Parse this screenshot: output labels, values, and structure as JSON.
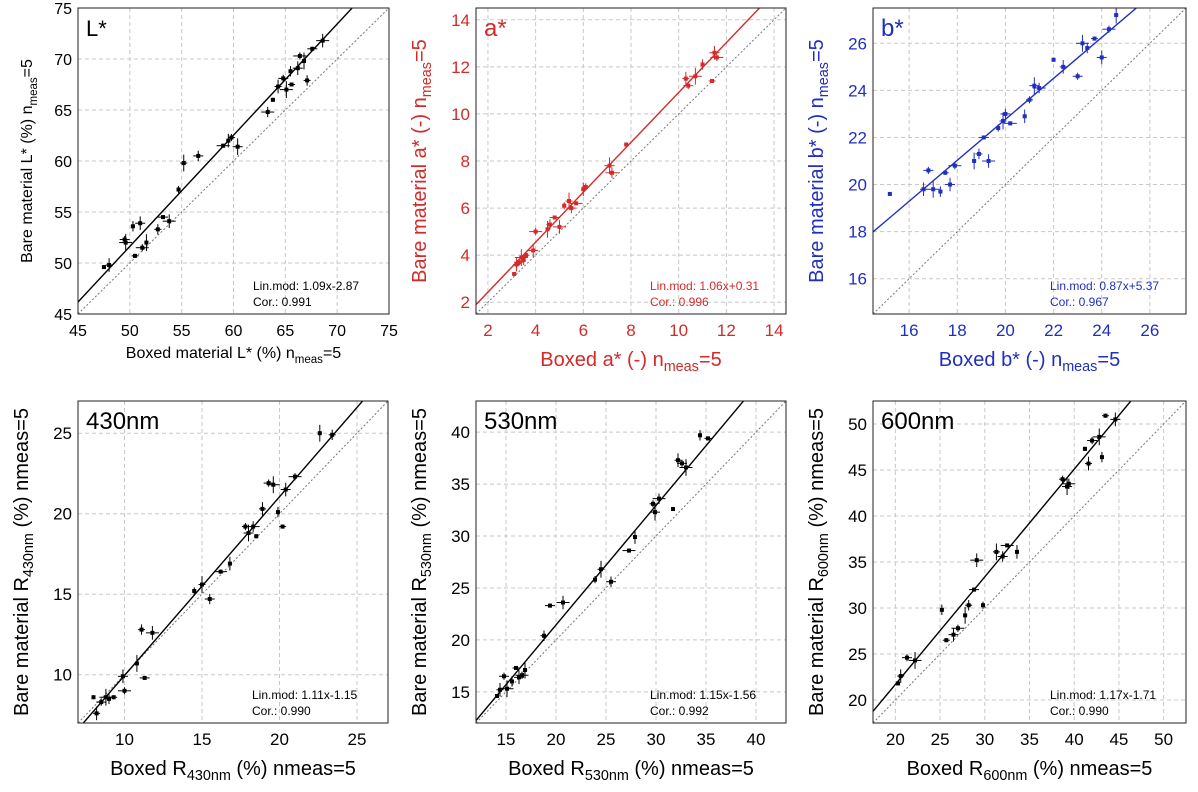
{
  "chart_data": [
    {
      "type": "scatter",
      "panel_label": "L*",
      "xlabel": "Boxed material L* (%) n",
      "xlabel_sub": "meas",
      "xlabel_tail": "=5",
      "ylabel": "Bare material L* (%) n",
      "ylabel_sub": "meas",
      "ylabel_tail": "=5",
      "xlim": [
        45,
        75
      ],
      "ylim": [
        45,
        75
      ],
      "xticks": [
        45,
        50,
        55,
        60,
        65,
        70,
        75
      ],
      "yticks": [
        45,
        50,
        55,
        60,
        65,
        70,
        75
      ],
      "color": "#000000",
      "fit": {
        "slope": 1.09,
        "intercept": -2.87
      },
      "annotation_lines": [
        "Lin.mod: 1.09x-2.87",
        "Cor.: 0.991"
      ],
      "points": [
        {
          "x": 47.5,
          "y": 49.6
        },
        {
          "x": 48.0,
          "y": 49.8
        },
        {
          "x": 49.5,
          "y": 52.3
        },
        {
          "x": 49.6,
          "y": 52.0
        },
        {
          "x": 50.3,
          "y": 53.6
        },
        {
          "x": 50.5,
          "y": 50.7
        },
        {
          "x": 51.0,
          "y": 53.9
        },
        {
          "x": 51.2,
          "y": 51.5
        },
        {
          "x": 51.6,
          "y": 52.0
        },
        {
          "x": 52.7,
          "y": 53.3
        },
        {
          "x": 53.2,
          "y": 54.5
        },
        {
          "x": 53.8,
          "y": 54.1
        },
        {
          "x": 54.7,
          "y": 57.2
        },
        {
          "x": 55.2,
          "y": 59.8
        },
        {
          "x": 56.6,
          "y": 60.5
        },
        {
          "x": 59.0,
          "y": 61.5
        },
        {
          "x": 59.5,
          "y": 62.0
        },
        {
          "x": 59.8,
          "y": 62.3
        },
        {
          "x": 60.4,
          "y": 61.4
        },
        {
          "x": 63.3,
          "y": 64.8
        },
        {
          "x": 63.8,
          "y": 66.0
        },
        {
          "x": 64.3,
          "y": 67.3
        },
        {
          "x": 64.8,
          "y": 68.1
        },
        {
          "x": 65.1,
          "y": 67.0
        },
        {
          "x": 65.5,
          "y": 68.8
        },
        {
          "x": 65.6,
          "y": 67.5
        },
        {
          "x": 66.2,
          "y": 69.1
        },
        {
          "x": 66.4,
          "y": 70.3
        },
        {
          "x": 66.8,
          "y": 69.8
        },
        {
          "x": 67.1,
          "y": 67.9
        },
        {
          "x": 67.6,
          "y": 71.0
        },
        {
          "x": 68.6,
          "y": 71.8
        }
      ]
    },
    {
      "type": "scatter",
      "panel_label": "a*",
      "xlabel": "Boxed a* (-) n",
      "xlabel_sub": "meas",
      "xlabel_tail": "=5",
      "ylabel": "Bare material a* (-) n",
      "ylabel_sub": "meas",
      "ylabel_tail": "=5",
      "xlim": [
        1.5,
        14.5
      ],
      "ylim": [
        1.5,
        14.5
      ],
      "xticks": [
        2,
        4,
        6,
        8,
        10,
        12,
        14
      ],
      "yticks": [
        2,
        4,
        6,
        8,
        10,
        12,
        14
      ],
      "color": "#d32a2a",
      "fit": {
        "slope": 1.06,
        "intercept": 0.31
      },
      "annotation_lines": [
        "Lin.mod: 1.06x+0.31",
        "Cor.: 0.996"
      ],
      "points": [
        {
          "x": 3.1,
          "y": 3.2
        },
        {
          "x": 3.2,
          "y": 3.6
        },
        {
          "x": 3.3,
          "y": 3.7
        },
        {
          "x": 3.4,
          "y": 3.9
        },
        {
          "x": 3.5,
          "y": 3.8
        },
        {
          "x": 3.6,
          "y": 4.0
        },
        {
          "x": 3.9,
          "y": 4.2
        },
        {
          "x": 4.0,
          "y": 5.0
        },
        {
          "x": 4.5,
          "y": 5.1
        },
        {
          "x": 4.6,
          "y": 5.3
        },
        {
          "x": 4.8,
          "y": 5.6
        },
        {
          "x": 5.0,
          "y": 5.2
        },
        {
          "x": 5.2,
          "y": 6.1
        },
        {
          "x": 5.4,
          "y": 6.3
        },
        {
          "x": 5.5,
          "y": 6.0
        },
        {
          "x": 5.7,
          "y": 6.2
        },
        {
          "x": 6.0,
          "y": 6.8
        },
        {
          "x": 6.1,
          "y": 6.9
        },
        {
          "x": 7.1,
          "y": 7.8
        },
        {
          "x": 7.2,
          "y": 7.5
        },
        {
          "x": 7.8,
          "y": 8.7
        },
        {
          "x": 10.3,
          "y": 11.5
        },
        {
          "x": 10.4,
          "y": 11.2
        },
        {
          "x": 10.7,
          "y": 11.6
        },
        {
          "x": 11.0,
          "y": 12.1
        },
        {
          "x": 11.4,
          "y": 11.4
        },
        {
          "x": 11.5,
          "y": 12.6
        },
        {
          "x": 11.6,
          "y": 12.4
        }
      ]
    },
    {
      "type": "scatter",
      "panel_label": "b*",
      "xlabel": "Boxed b* (-) n",
      "xlabel_sub": "meas",
      "xlabel_tail": "=5",
      "ylabel": "Bare material b* (-) n",
      "ylabel_sub": "meas",
      "ylabel_tail": "=5",
      "xlim": [
        14.5,
        27.5
      ],
      "ylim": [
        14.5,
        27.5
      ],
      "xticks": [
        16,
        18,
        20,
        22,
        24,
        26
      ],
      "yticks": [
        16,
        18,
        20,
        22,
        24,
        26
      ],
      "color": "#1f2fc0",
      "fit": {
        "slope": 0.87,
        "intercept": 5.37
      },
      "annotation_lines": [
        "Lin.mod: 0.87x+5.37",
        "Cor.: 0.967"
      ],
      "points": [
        {
          "x": 15.2,
          "y": 19.6
        },
        {
          "x": 16.6,
          "y": 19.8
        },
        {
          "x": 16.8,
          "y": 20.6
        },
        {
          "x": 17.0,
          "y": 19.8
        },
        {
          "x": 17.3,
          "y": 19.7
        },
        {
          "x": 17.5,
          "y": 20.5
        },
        {
          "x": 17.7,
          "y": 20.0
        },
        {
          "x": 17.9,
          "y": 20.8
        },
        {
          "x": 18.7,
          "y": 21.0
        },
        {
          "x": 18.9,
          "y": 21.3
        },
        {
          "x": 19.1,
          "y": 22.0
        },
        {
          "x": 19.3,
          "y": 21.0
        },
        {
          "x": 19.7,
          "y": 22.4
        },
        {
          "x": 19.9,
          "y": 22.7
        },
        {
          "x": 20.0,
          "y": 23.0
        },
        {
          "x": 20.2,
          "y": 22.6
        },
        {
          "x": 20.8,
          "y": 22.9
        },
        {
          "x": 21.0,
          "y": 23.6
        },
        {
          "x": 21.2,
          "y": 24.2
        },
        {
          "x": 21.4,
          "y": 24.1
        },
        {
          "x": 22.0,
          "y": 25.3
        },
        {
          "x": 22.4,
          "y": 25.0
        },
        {
          "x": 23.0,
          "y": 24.6
        },
        {
          "x": 23.2,
          "y": 26.0
        },
        {
          "x": 23.4,
          "y": 25.8
        },
        {
          "x": 23.7,
          "y": 26.2
        },
        {
          "x": 24.0,
          "y": 25.4
        },
        {
          "x": 24.3,
          "y": 26.6
        },
        {
          "x": 24.6,
          "y": 27.2
        }
      ]
    },
    {
      "type": "scatter",
      "panel_label": "430nm",
      "xlabel": "Boxed R",
      "xlabel_sub": "430nm",
      "xlabel_tail": " (%) nmeas=5",
      "ylabel": "Bare material R",
      "ylabel_sub": "430nm",
      "ylabel_tail": " (%) nmeas=5",
      "xlim": [
        7,
        27
      ],
      "ylim": [
        7,
        27
      ],
      "xticks": [
        10,
        15,
        20,
        25
      ],
      "yticks": [
        10,
        15,
        20,
        25
      ],
      "color": "#000000",
      "fit": {
        "slope": 1.11,
        "intercept": -1.15
      },
      "annotation_lines": [
        "Lin.mod: 1.11x-1.15",
        "Cor.: 0.990"
      ],
      "points": [
        {
          "x": 8.0,
          "y": 8.6
        },
        {
          "x": 8.2,
          "y": 7.6
        },
        {
          "x": 8.5,
          "y": 8.3
        },
        {
          "x": 8.8,
          "y": 8.6
        },
        {
          "x": 9.0,
          "y": 8.5
        },
        {
          "x": 9.3,
          "y": 8.6
        },
        {
          "x": 9.9,
          "y": 9.9
        },
        {
          "x": 10.0,
          "y": 9.0
        },
        {
          "x": 10.8,
          "y": 10.7
        },
        {
          "x": 11.1,
          "y": 12.8
        },
        {
          "x": 11.3,
          "y": 9.8
        },
        {
          "x": 11.8,
          "y": 12.6
        },
        {
          "x": 14.5,
          "y": 15.2
        },
        {
          "x": 15.0,
          "y": 15.6
        },
        {
          "x": 15.5,
          "y": 14.7
        },
        {
          "x": 16.2,
          "y": 16.4
        },
        {
          "x": 16.8,
          "y": 16.9
        },
        {
          "x": 17.8,
          "y": 19.2
        },
        {
          "x": 18.0,
          "y": 18.8
        },
        {
          "x": 18.3,
          "y": 19.2
        },
        {
          "x": 18.5,
          "y": 18.6
        },
        {
          "x": 18.9,
          "y": 20.3
        },
        {
          "x": 19.3,
          "y": 21.9
        },
        {
          "x": 19.6,
          "y": 21.8
        },
        {
          "x": 19.9,
          "y": 20.1
        },
        {
          "x": 20.2,
          "y": 19.2
        },
        {
          "x": 20.4,
          "y": 21.5
        },
        {
          "x": 21.0,
          "y": 22.3
        },
        {
          "x": 22.6,
          "y": 25.0
        },
        {
          "x": 23.4,
          "y": 24.9
        }
      ]
    },
    {
      "type": "scatter",
      "panel_label": "530nm",
      "xlabel": "Boxed R",
      "xlabel_sub": "530nm",
      "xlabel_tail": " (%) nmeas=5",
      "ylabel": "Bare material R",
      "ylabel_sub": "530nm",
      "ylabel_tail": " (%) nmeas=5",
      "xlim": [
        12,
        43
      ],
      "ylim": [
        12,
        43
      ],
      "xticks": [
        15,
        20,
        25,
        30,
        35,
        40
      ],
      "yticks": [
        15,
        20,
        25,
        30,
        35,
        40
      ],
      "color": "#000000",
      "fit": {
        "slope": 1.15,
        "intercept": -1.56
      },
      "annotation_lines": [
        "Lin.mod: 1.15x-1.56",
        "Cor.: 0.992"
      ],
      "points": [
        {
          "x": 14.1,
          "y": 14.6
        },
        {
          "x": 14.4,
          "y": 15.2
        },
        {
          "x": 14.8,
          "y": 16.5
        },
        {
          "x": 15.1,
          "y": 15.3
        },
        {
          "x": 15.6,
          "y": 16.0
        },
        {
          "x": 16.0,
          "y": 17.3
        },
        {
          "x": 16.3,
          "y": 16.4
        },
        {
          "x": 16.6,
          "y": 16.6
        },
        {
          "x": 16.9,
          "y": 17.1
        },
        {
          "x": 18.8,
          "y": 20.4
        },
        {
          "x": 19.4,
          "y": 23.3
        },
        {
          "x": 20.7,
          "y": 23.6
        },
        {
          "x": 23.9,
          "y": 25.8
        },
        {
          "x": 24.5,
          "y": 26.8
        },
        {
          "x": 25.5,
          "y": 25.6
        },
        {
          "x": 27.3,
          "y": 28.6
        },
        {
          "x": 27.9,
          "y": 29.9
        },
        {
          "x": 29.7,
          "y": 33.1
        },
        {
          "x": 29.9,
          "y": 32.3
        },
        {
          "x": 30.3,
          "y": 33.6
        },
        {
          "x": 31.7,
          "y": 32.6
        },
        {
          "x": 32.2,
          "y": 37.3
        },
        {
          "x": 32.6,
          "y": 37.0
        },
        {
          "x": 33.0,
          "y": 36.6
        },
        {
          "x": 34.4,
          "y": 39.7
        },
        {
          "x": 35.2,
          "y": 39.4
        }
      ]
    },
    {
      "type": "scatter",
      "panel_label": "600nm",
      "xlabel": "Boxed R",
      "xlabel_sub": "600nm",
      "xlabel_tail": " (%) nmeas=5",
      "ylabel": "Bare material R",
      "ylabel_sub": "600nm",
      "ylabel_tail": " (%) nmeas=5",
      "xlim": [
        17.5,
        52.5
      ],
      "ylim": [
        17.5,
        52.5
      ],
      "xticks": [
        20,
        25,
        30,
        35,
        40,
        45,
        50
      ],
      "yticks": [
        20,
        25,
        30,
        35,
        40,
        45,
        50
      ],
      "color": "#000000",
      "fit": {
        "slope": 1.17,
        "intercept": -1.71
      },
      "annotation_lines": [
        "Lin.mod: 1.17x-1.71",
        "Cor.: 0.990"
      ],
      "points": [
        {
          "x": 20.3,
          "y": 21.8
        },
        {
          "x": 20.6,
          "y": 22.6
        },
        {
          "x": 21.3,
          "y": 24.6
        },
        {
          "x": 22.2,
          "y": 24.3
        },
        {
          "x": 25.2,
          "y": 29.8
        },
        {
          "x": 25.7,
          "y": 26.5
        },
        {
          "x": 26.5,
          "y": 27.1
        },
        {
          "x": 27.0,
          "y": 27.8
        },
        {
          "x": 27.8,
          "y": 29.2
        },
        {
          "x": 28.2,
          "y": 30.3
        },
        {
          "x": 28.8,
          "y": 32.0
        },
        {
          "x": 29.1,
          "y": 35.2
        },
        {
          "x": 29.8,
          "y": 30.3
        },
        {
          "x": 31.3,
          "y": 36.1
        },
        {
          "x": 32.0,
          "y": 35.6
        },
        {
          "x": 32.5,
          "y": 36.8
        },
        {
          "x": 33.6,
          "y": 36.1
        },
        {
          "x": 38.7,
          "y": 44.0
        },
        {
          "x": 39.2,
          "y": 43.2
        },
        {
          "x": 39.4,
          "y": 43.5
        },
        {
          "x": 41.2,
          "y": 47.3
        },
        {
          "x": 41.6,
          "y": 45.7
        },
        {
          "x": 42.0,
          "y": 48.2
        },
        {
          "x": 42.8,
          "y": 48.6
        },
        {
          "x": 43.1,
          "y": 46.4
        },
        {
          "x": 43.5,
          "y": 50.9
        },
        {
          "x": 44.6,
          "y": 50.5
        }
      ]
    }
  ]
}
